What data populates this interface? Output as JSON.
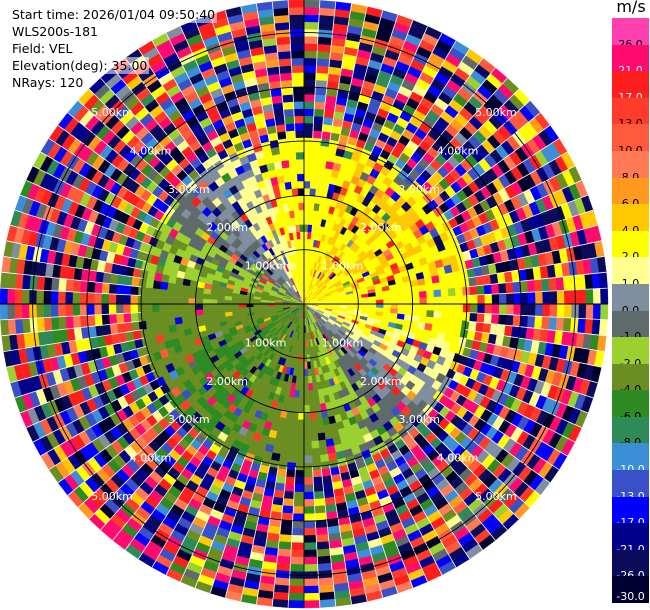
{
  "header": {
    "start_time": "Start time: 2026/01/04 09:50:40",
    "instrument": "WLS200s-181",
    "field": "Field: VEL",
    "elevation": "Elevation(deg): 35.00",
    "nrays": "NRays: 120"
  },
  "colorbar": {
    "unit": "m/s",
    "ticks": [
      "26.0",
      "21.0",
      "17.0",
      "13.0",
      "10.0",
      "8.0",
      "6.0",
      "4.0",
      "2.0",
      "1.0",
      "0.0",
      "-1.0",
      "-2.0",
      "-4.0",
      "-6.0",
      "-8.0",
      "-10.0",
      "-13.0",
      "-17.0",
      "-21.0",
      "-26.0",
      "-30.0"
    ],
    "colors": [
      "#ff40b0",
      "#ff0a6e",
      "#ff1e1e",
      "#ff3c2a",
      "#ff5a3c",
      "#ff7a55",
      "#ff9a1e",
      "#ffc800",
      "#ffff00",
      "#ffff90",
      "#7f8f9f",
      "#5f6a6a",
      "#9bd12e",
      "#6b8e23",
      "#2e8b22",
      "#2e8b57",
      "#3c8fd6",
      "#3a50c8",
      "#0000ff",
      "#00008b",
      "#0a0a5a",
      "#000030"
    ]
  },
  "chart_data": {
    "type": "ppi",
    "field": "VEL",
    "units": "m/s",
    "n_rays": 120,
    "elevation_deg": 35.0,
    "max_range_km": 5.6,
    "range_rings_km": [
      1.0,
      2.0,
      3.0,
      4.0,
      5.0
    ],
    "ring_labels": [
      "1.00km",
      "2.00km",
      "3.00km",
      "4.00km",
      "5.00km"
    ],
    "color_range": [
      -30.0,
      26.0
    ],
    "velocity_pattern": {
      "max_radial_velocity_ms": 4.0,
      "positive_direction": "north-east",
      "clean_signal_range_km": 3.0
    }
  }
}
